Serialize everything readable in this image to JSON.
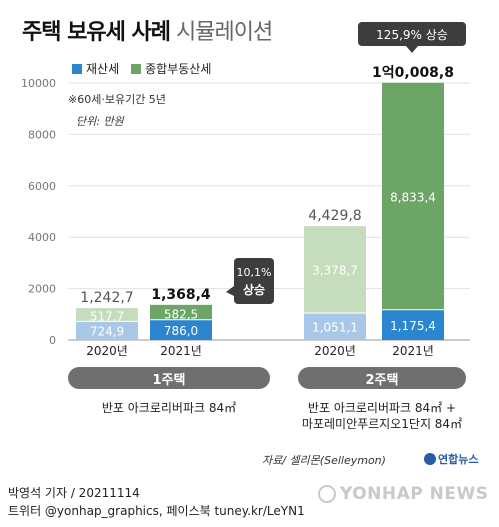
{
  "title_bold": "주택 보유세 사례",
  "title_light": "시뮬레이션",
  "legend": {
    "property_tax": "재산세",
    "comprehensive_tax": "종합부동산세"
  },
  "colors": {
    "property_tax_2020": "#a9c8e8",
    "property_tax_2021": "#2b85cf",
    "comprehensive_tax_2020": "#c5dcbd",
    "comprehensive_tax_2021": "#6ca566",
    "pill": "#6f6f6f",
    "increase_callout": "#3d3d3d"
  },
  "note": "※60세·보유기간 5년",
  "unit": "단위: 만원",
  "groups": [
    {
      "label": "1주택",
      "caption_lines": [
        "반포 아크로리버파크 84㎡"
      ]
    },
    {
      "label": "2주택",
      "caption_lines": [
        "반포 아크로리버파크 84㎡ +",
        "마포레미안푸르지오1단지 84㎡"
      ]
    }
  ],
  "source": "자료/ 셀리몬(Selleymon)",
  "brand": "연합뉴스",
  "credit_line1": "박영석 기자 / 20211114",
  "credit_line2": "트위터 @yonhap_graphics, 페이스북 tuney.kr/LeYN1",
  "watermark": "YONHAP NEWS",
  "chart_data": {
    "type": "bar",
    "stacked": true,
    "ylim": [
      0,
      10000
    ],
    "yticks": [
      0,
      2000,
      4000,
      6000,
      8000,
      10000
    ],
    "ytick_labels": [
      "0",
      "2000",
      "4000",
      "6000",
      "8000",
      "10000"
    ],
    "categories": [
      "2020년",
      "2021년",
      "2020년",
      "2021년"
    ],
    "series": [
      {
        "name": "재산세",
        "values": [
          724.9,
          786.0,
          1051.1,
          1175.4
        ],
        "labels": [
          "724,9",
          "786,0",
          "1,051,1",
          "1,175,4"
        ]
      },
      {
        "name": "종합부동산세",
        "values": [
          517.7,
          582.5,
          3378.7,
          8833.4
        ],
        "labels": [
          "517,7",
          "582,5",
          "3,378,7",
          "8,833,4"
        ]
      }
    ],
    "totals": [
      1242.7,
      1368.4,
      4429.8,
      10008.8
    ],
    "total_labels": [
      "1,242,7",
      "1,368,4",
      "4,429,8",
      "1억0,008,8"
    ],
    "increases": [
      {
        "text_lines": [
          "10,1%",
          "상승"
        ]
      },
      {
        "text_lines": [
          "125,9% 상승"
        ]
      }
    ]
  }
}
